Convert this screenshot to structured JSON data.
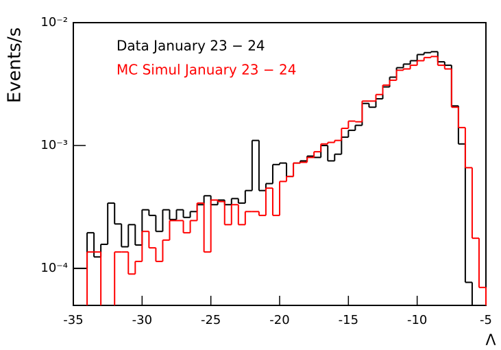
{
  "chart_data": {
    "type": "histogram",
    "y_label": "Events/s",
    "x_label": "Λ",
    "log_y": true,
    "bins": [
      -35,
      -34.5,
      -34,
      -33.5,
      -33,
      -32.5,
      -32,
      -31.5,
      -31,
      -30.5,
      -30,
      -29.5,
      -29,
      -28.5,
      -28,
      -27.5,
      -27,
      -26.5,
      -26,
      -25.5,
      -25,
      -24.5,
      -24,
      -23.5,
      -23,
      -22.5,
      -22,
      -21.5,
      -21,
      -20.5,
      -20,
      -19.5,
      -19,
      -18.5,
      -18,
      -17.5,
      -17,
      -16.5,
      -16,
      -15.5,
      -15,
      -14.5,
      -14,
      -13.5,
      -13,
      -12.5,
      -12,
      -11.5,
      -11,
      -10.5,
      -10,
      -9.5,
      -9,
      -8.5,
      -8,
      -7.5,
      -7,
      -6.5,
      -6,
      -5.5,
      -5
    ],
    "series": [
      {
        "name": "Data January 23 − 24",
        "color": "#000000",
        "values": [
          0.0001,
          0.0001,
          0.000195,
          0.000124,
          0.000157,
          0.00034,
          0.00023,
          0.00015,
          0.000227,
          0.000155,
          0.0003,
          0.00027,
          0.0002,
          0.0003,
          0.00025,
          0.0003,
          0.00026,
          0.00029,
          0.00033,
          0.00039,
          0.00033,
          0.00036,
          0.00033,
          0.00037,
          0.00034,
          0.00043,
          0.0011,
          0.00043,
          0.00049,
          0.0007,
          0.00072,
          0.00056,
          0.00072,
          0.00075,
          0.00082,
          0.0008,
          0.001,
          0.00075,
          0.00085,
          0.00117,
          0.00133,
          0.00146,
          0.0022,
          0.00205,
          0.0024,
          0.003,
          0.0036,
          0.0043,
          0.0046,
          0.0049,
          0.0055,
          0.0057,
          0.0058,
          0.0048,
          0.0045,
          0.0021,
          0.00103,
          7.7e-05,
          null,
          null
        ]
      },
      {
        "name": "MC Simul January 23 − 24",
        "color": "#ff0000",
        "values": [
          null,
          null,
          0.000136,
          0.000136,
          null,
          null,
          0.000136,
          0.000136,
          9e-05,
          0.000114,
          0.0002,
          0.000147,
          0.000114,
          0.00017,
          0.000245,
          0.000245,
          0.000195,
          0.000245,
          0.00034,
          0.000136,
          0.00036,
          0.00035,
          0.000227,
          0.00033,
          0.000227,
          0.00029,
          0.00029,
          0.00027,
          0.00045,
          0.00027,
          0.00051,
          0.00056,
          0.00072,
          0.00073,
          0.0008,
          0.00089,
          0.00103,
          0.00106,
          0.0011,
          0.00138,
          0.00158,
          0.00156,
          0.0023,
          0.0023,
          0.0026,
          0.0031,
          0.0034,
          0.0041,
          0.0042,
          0.0045,
          0.0049,
          0.0052,
          0.0053,
          0.0045,
          0.0042,
          0.00205,
          0.0014,
          0.00066,
          0.000176,
          7e-05
        ]
      }
    ],
    "xlim": [
      -35,
      -5
    ],
    "xticks": [
      -35,
      -30,
      -25,
      -20,
      -15,
      -10,
      -5
    ],
    "ylim": [
      5e-05,
      0.01
    ],
    "yticks": [
      {
        "value": 0.0001,
        "label": "10⁻⁴"
      },
      {
        "value": 0.001,
        "label": "10⁻³"
      },
      {
        "value": 0.01,
        "label": "10⁻²"
      }
    ]
  }
}
